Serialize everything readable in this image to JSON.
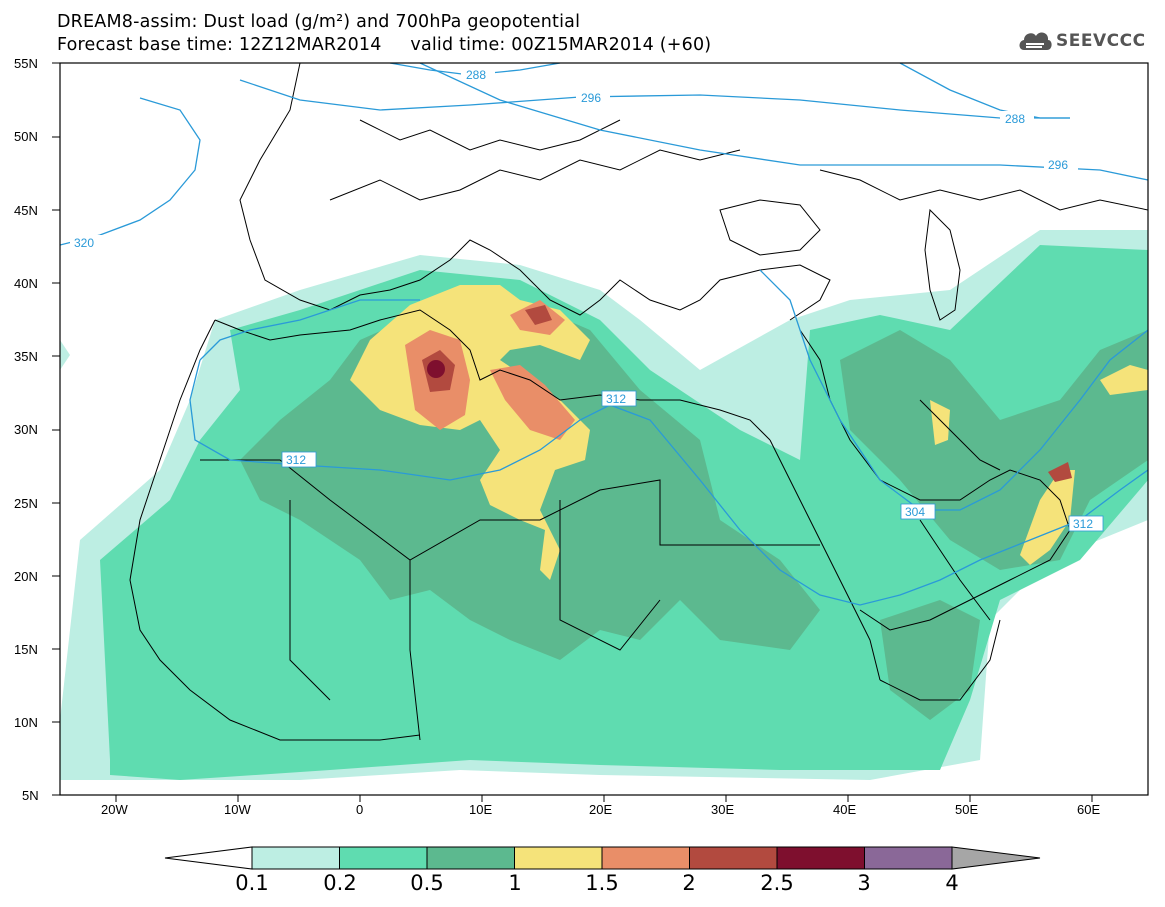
{
  "title": {
    "line1": "DREAM8-assim: Dust load (g/m²) and 700hPa geopotential",
    "line2": "Forecast base time: 12Z12MAR2014     valid time: 00Z15MAR2014 (+60)"
  },
  "logo": {
    "text": "SEEVCCC",
    "icon": "cloud-icon"
  },
  "axes": {
    "lat_labels": [
      "55N",
      "50N",
      "45N",
      "40N",
      "35N",
      "30N",
      "25N",
      "20N",
      "15N",
      "10N",
      "5N"
    ],
    "lon_labels": [
      "20W",
      "10W",
      "0",
      "10E",
      "20E",
      "30E",
      "40E",
      "50E",
      "60E"
    ]
  },
  "contours": {
    "labels": [
      "288",
      "296",
      "288",
      "296",
      "320",
      "312",
      "312",
      "304",
      "312"
    ]
  },
  "colorbar": {
    "ticks": [
      "0.1",
      "0.2",
      "0.5",
      "1",
      "1.5",
      "2",
      "2.5",
      "3",
      "4"
    ],
    "colors": [
      "#ffffff",
      "#bdeee3",
      "#5fdcb0",
      "#5cb98f",
      "#f5e37a",
      "#e98e68",
      "#b24a3f",
      "#7e0f2e",
      "#8a6898",
      "#a6a6a6"
    ]
  },
  "legend_colors": {
    "contour_line": "#2a9ad8",
    "border_line": "#000000"
  }
}
